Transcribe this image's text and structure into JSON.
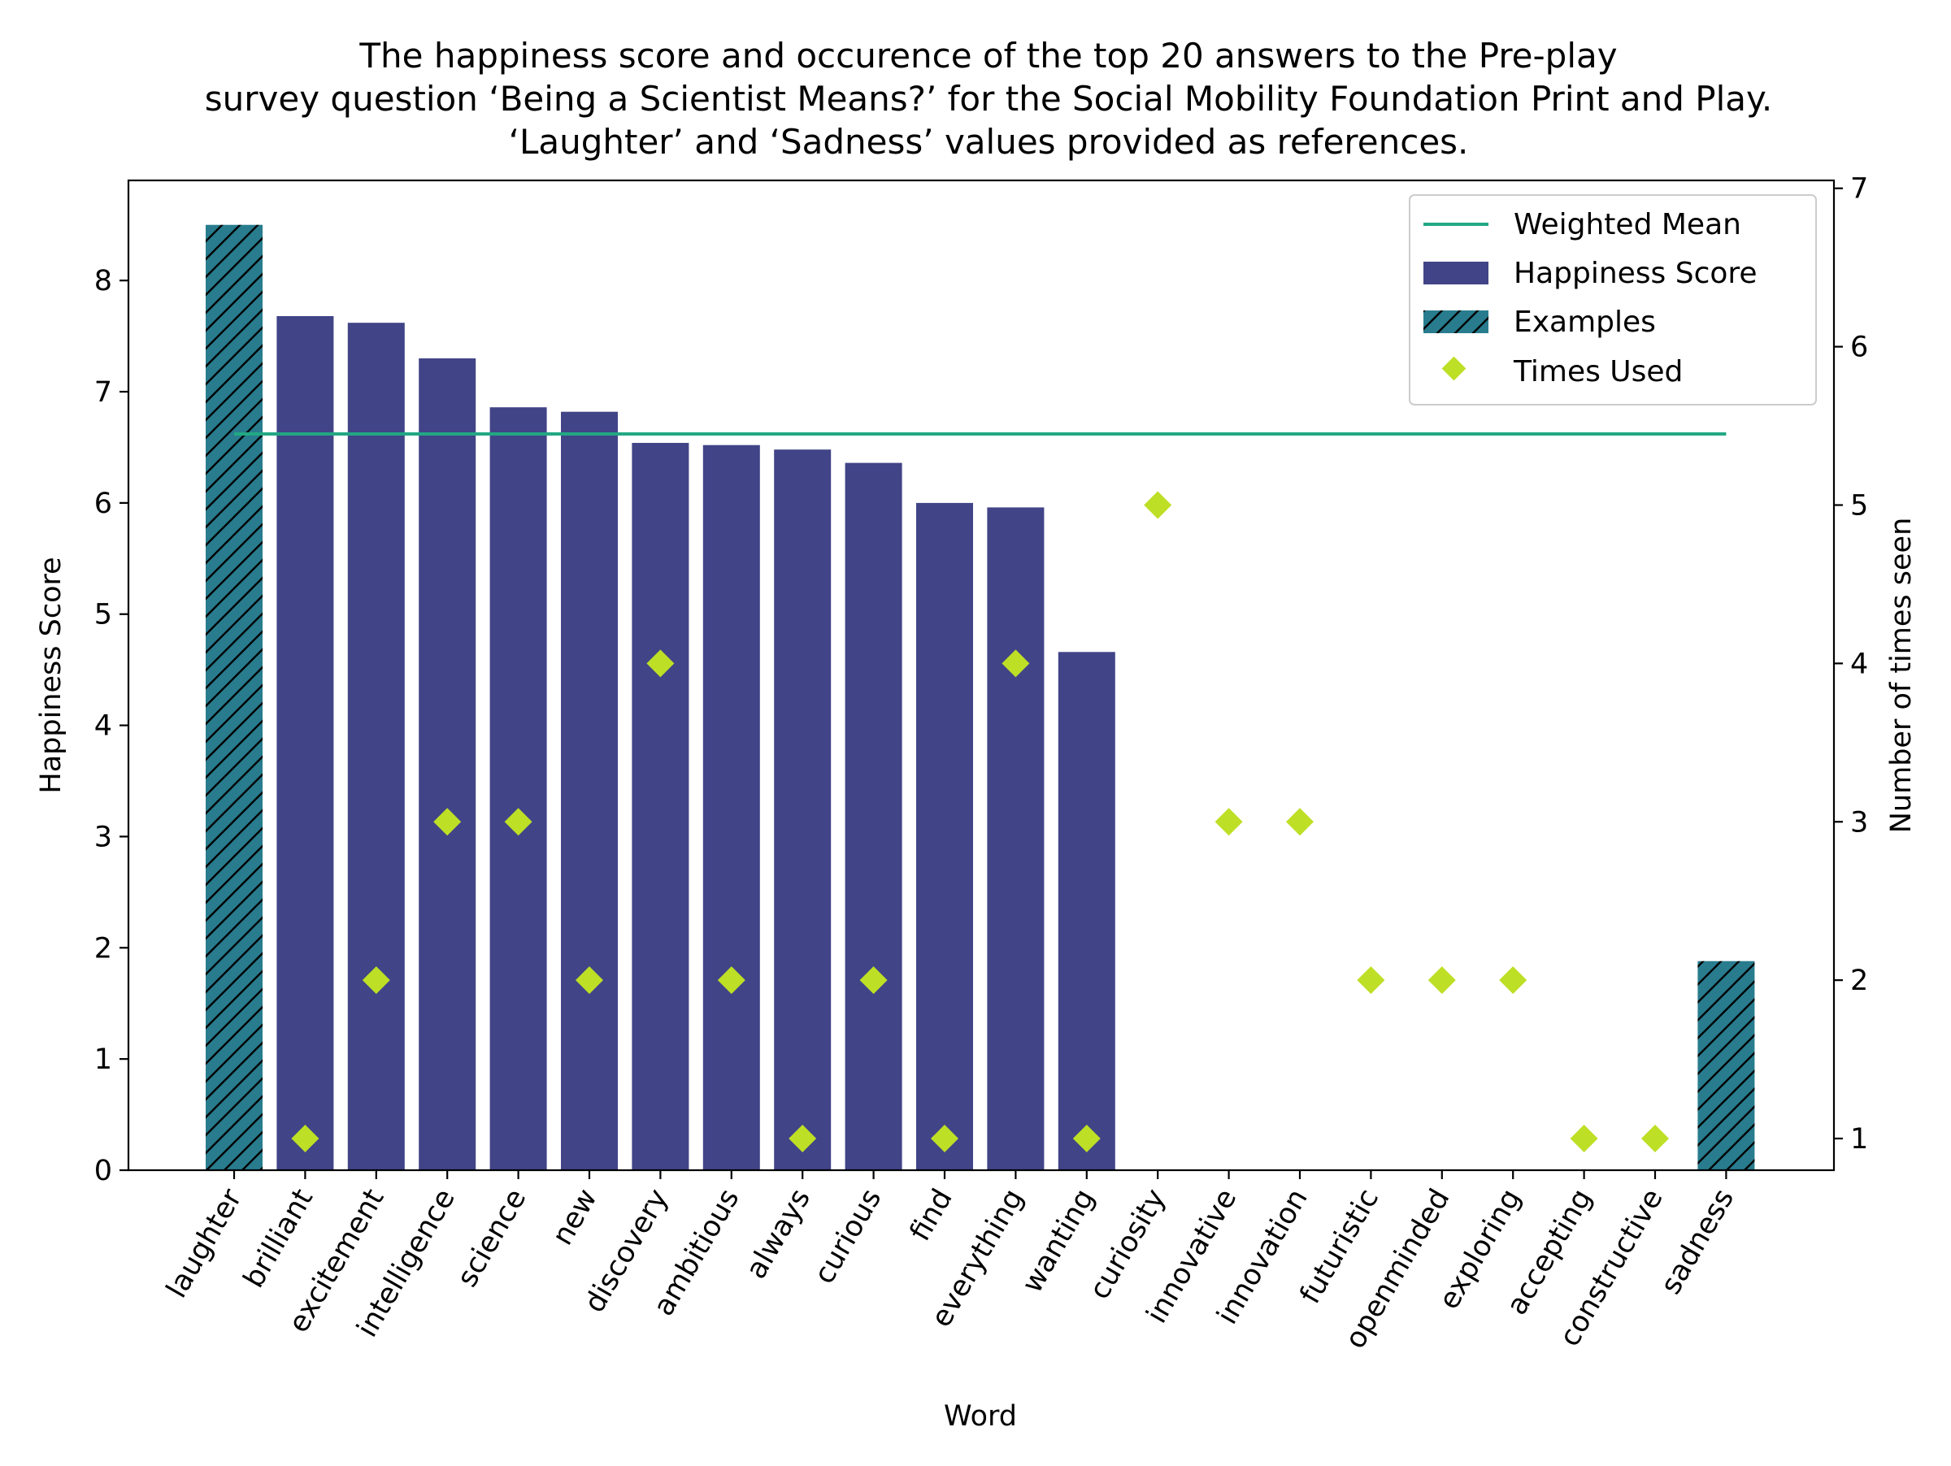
{
  "chart_data": {
    "type": "bar",
    "title_lines": [
      "The happiness score and occurence of the top 20 answers to the Pre-play",
      "survey question ‘Being a Scientist Means?’ for the Social Mobility Foundation Print and Play.",
      "‘Laughter’ and ‘Sadness’ values provided as references."
    ],
    "xlabel": "Word",
    "ylabel": "Happiness Score",
    "y2label": "Number of times seen",
    "ylim": [
      0,
      8.9
    ],
    "y2lim": [
      0.8,
      7.05
    ],
    "yticks": [
      "0",
      "1",
      "2",
      "3",
      "4",
      "5",
      "6",
      "7",
      "8"
    ],
    "y2ticks": [
      "1",
      "2",
      "3",
      "4",
      "5",
      "6",
      "7"
    ],
    "categories": [
      "laughter",
      "brilliant",
      "excitement",
      "intelligence",
      "science",
      "new",
      "discovery",
      "ambitious",
      "always",
      "curious",
      "find",
      "everything",
      "wanting",
      "curiosity",
      "innovative",
      "innovation",
      "futuristic",
      "openminded",
      "exploring",
      "accepting",
      "constructive",
      "sadness"
    ],
    "happiness_scores": [
      8.5,
      7.68,
      7.62,
      7.3,
      6.86,
      6.82,
      6.54,
      6.52,
      6.48,
      6.36,
      6.0,
      5.96,
      4.66,
      null,
      null,
      null,
      null,
      null,
      null,
      null,
      null,
      1.88
    ],
    "is_example": [
      true,
      false,
      false,
      false,
      false,
      false,
      false,
      false,
      false,
      false,
      false,
      false,
      false,
      false,
      false,
      false,
      false,
      false,
      false,
      false,
      false,
      true
    ],
    "times_used": [
      null,
      1,
      2,
      3,
      3,
      2,
      4,
      2,
      1,
      2,
      1,
      4,
      1,
      5,
      3,
      3,
      2,
      2,
      2,
      1,
      1,
      null
    ],
    "weighted_mean": 6.62,
    "weighted_mean_span": [
      "laughter",
      "sadness"
    ],
    "legend_position": "top-right",
    "legend": [
      {
        "key": "weighted_mean",
        "label": "Weighted Mean"
      },
      {
        "key": "happiness",
        "label": "Happiness Score"
      },
      {
        "key": "examples",
        "label": "Examples"
      },
      {
        "key": "times_used",
        "label": "Times Used"
      }
    ],
    "colors": {
      "happiness": "#414487",
      "examples": "#287c8e",
      "weighted_mean": "#22a884",
      "times_used": "#bddf26",
      "axis": "#000000"
    },
    "grid": false
  }
}
